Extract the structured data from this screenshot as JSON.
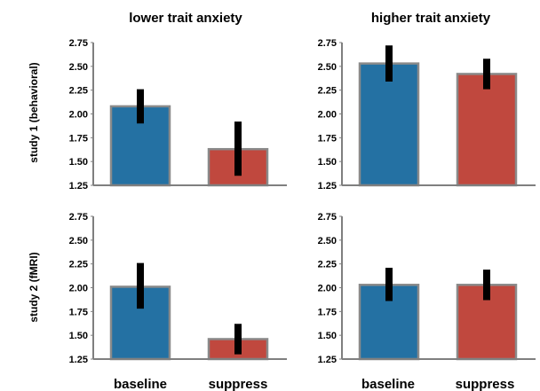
{
  "column_titles": [
    "lower trait anxiety",
    "higher trait anxiety"
  ],
  "row_titles": [
    "study 1 (behavioral)",
    "study 2 (fMRI)"
  ],
  "colors": {
    "baseline": "#2471a3",
    "suppress": "#c0483e",
    "bar_border": "#8a8a8a",
    "axis": "#7f7f7f",
    "error_bar": "#000000"
  },
  "chart_data": [
    {
      "type": "bar",
      "title": "lower trait anxiety",
      "ylabel": "study 1 (behavioral)",
      "categories": [
        "baseline",
        "suppress"
      ],
      "values": [
        2.08,
        1.63
      ],
      "error_low": [
        1.9,
        1.35
      ],
      "error_high": [
        2.26,
        1.92
      ],
      "ylim": [
        1.25,
        2.75
      ],
      "yticks": [
        "2.75",
        "2.50",
        "2.25",
        "2.00",
        "1.75",
        "1.50",
        "1.25"
      ]
    },
    {
      "type": "bar",
      "title": "higher trait anxiety",
      "ylabel": "study 1 (behavioral)",
      "categories": [
        "baseline",
        "suppress"
      ],
      "values": [
        2.53,
        2.42
      ],
      "error_low": [
        2.34,
        2.26
      ],
      "error_high": [
        2.72,
        2.58
      ],
      "ylim": [
        1.25,
        2.75
      ],
      "yticks": [
        "2.75",
        "2.50",
        "2.25",
        "2.00",
        "1.75",
        "1.50",
        "1.25"
      ]
    },
    {
      "type": "bar",
      "title": "lower trait anxiety",
      "ylabel": "study 2 (fMRI)",
      "categories": [
        "baseline",
        "suppress"
      ],
      "values": [
        2.01,
        1.46
      ],
      "error_low": [
        1.78,
        1.3
      ],
      "error_high": [
        2.26,
        1.62
      ],
      "ylim": [
        1.25,
        2.75
      ],
      "yticks": [
        "2.75",
        "2.50",
        "2.25",
        "2.00",
        "1.75",
        "1.50",
        "1.25"
      ]
    },
    {
      "type": "bar",
      "title": "higher trait anxiety",
      "ylabel": "study 2 (fMRI)",
      "categories": [
        "baseline",
        "suppress"
      ],
      "values": [
        2.03,
        2.03
      ],
      "error_low": [
        1.86,
        1.87
      ],
      "error_high": [
        2.21,
        2.19
      ],
      "ylim": [
        1.25,
        2.75
      ],
      "yticks": [
        "2.75",
        "2.50",
        "2.25",
        "2.00",
        "1.75",
        "1.50",
        "1.25"
      ]
    }
  ]
}
